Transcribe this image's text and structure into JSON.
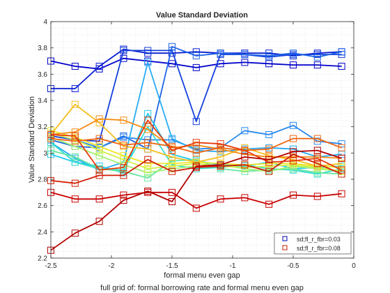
{
  "chart_data": {
    "type": "line",
    "title": "Value Standard Deviation",
    "xlabel": "formal menu even gap",
    "ylabel": "Value Standard Deviation",
    "caption": "full grid of: formal borrowing rate and formal menu even gap",
    "xlim": [
      -2.5,
      0
    ],
    "ylim": [
      2.2,
      4
    ],
    "xticks": [
      -2.5,
      -2,
      -1.5,
      -1,
      -0.5,
      0
    ],
    "xtick_labels": [
      "-2.5",
      "-2",
      "-1.5",
      "-1",
      "-0.5",
      "0"
    ],
    "yticks": [
      2.2,
      2.4,
      2.6,
      2.8,
      3,
      3.2,
      3.4,
      3.6,
      3.8,
      4
    ],
    "ytick_labels": [
      "2.2",
      "2.4",
      "2.6",
      "2.8",
      "3",
      "3.2",
      "3.4",
      "3.6",
      "3.8",
      "4"
    ],
    "grid": "minor dotted",
    "legend_position": "bottom-right",
    "marker": "square",
    "x": [
      -2.5,
      -2.3,
      -2.1,
      -1.9,
      -1.7,
      -1.5,
      -1.3,
      -1.1,
      -0.9,
      -0.7,
      -0.5,
      -0.3,
      -0.1
    ],
    "legend": [
      {
        "label": "sd;fl_r_fbr=0.03",
        "color": "#0000b4"
      },
      {
        "label": "sd;fl_r_fbr=0.08",
        "color": "#c81e00"
      }
    ],
    "series": [
      {
        "color": "#0000cc",
        "values": [
          3.7,
          3.66,
          3.64,
          3.72,
          3.7,
          3.68,
          3.65,
          3.68,
          3.69,
          3.68,
          3.67,
          3.67,
          3.66
        ]
      },
      {
        "color": "#0a1ed2",
        "values": [
          3.49,
          3.49,
          3.66,
          3.79,
          3.76,
          3.76,
          3.77,
          3.76,
          3.76,
          3.76,
          3.74,
          3.76,
          3.77
        ]
      },
      {
        "color": "#1440dc",
        "values": [
          3.13,
          3.1,
          3.09,
          3.78,
          3.78,
          3.78,
          3.24,
          3.75,
          3.75,
          3.73,
          3.75,
          3.75,
          3.75
        ]
      },
      {
        "color": "#1e64e6",
        "values": [
          3.1,
          3.05,
          3.04,
          3.13,
          3.03,
          3.81,
          3.74,
          3.76,
          3.75,
          3.74,
          3.76,
          3.73,
          3.77
        ]
      },
      {
        "color": "#2888ee",
        "values": [
          3.15,
          3.1,
          3.04,
          3.12,
          3.1,
          3.1,
          3.03,
          3.04,
          3.17,
          3.14,
          3.21,
          3.09,
          3.07
        ]
      },
      {
        "color": "#28aaf4",
        "values": [
          3.08,
          2.96,
          2.87,
          2.93,
          3.69,
          3.11,
          3.02,
          3.01,
          3.03,
          3.04,
          3.03,
          2.97,
          2.99
        ]
      },
      {
        "color": "#1ec8f0",
        "values": [
          2.99,
          2.93,
          2.9,
          2.85,
          3.3,
          2.99,
          2.94,
          2.91,
          2.9,
          2.93,
          2.88,
          2.89,
          2.9
        ]
      },
      {
        "color": "#32dcd2",
        "values": [
          3.08,
          2.93,
          2.88,
          2.87,
          3.2,
          2.91,
          2.88,
          2.89,
          2.91,
          2.88,
          2.87,
          2.84,
          2.88
        ]
      },
      {
        "color": "#64e6a0",
        "values": [
          3.02,
          2.97,
          2.88,
          2.86,
          2.81,
          2.94,
          2.95,
          2.88,
          2.86,
          2.87,
          2.88,
          2.85,
          2.84
        ]
      },
      {
        "color": "#a0ef6e",
        "values": [
          3.12,
          3.05,
          2.98,
          2.91,
          2.85,
          2.88,
          2.9,
          2.91,
          2.88,
          2.86,
          2.9,
          2.88,
          2.86
        ]
      },
      {
        "color": "#d2f046",
        "values": [
          3.15,
          3.1,
          3.02,
          2.95,
          2.88,
          2.9,
          2.92,
          2.9,
          2.89,
          2.9,
          2.91,
          2.89,
          2.86
        ]
      },
      {
        "color": "#f0e628",
        "values": [
          3.17,
          3.12,
          3.05,
          2.98,
          2.92,
          2.92,
          2.93,
          2.92,
          2.91,
          2.92,
          2.92,
          2.9,
          2.89
        ]
      },
      {
        "color": "#f5be1e",
        "values": [
          3.14,
          3.37,
          3.23,
          3.05,
          3.03,
          2.97,
          2.93,
          2.97,
          3.04,
          2.98,
          2.95,
          2.9,
          2.92
        ]
      },
      {
        "color": "#f58c14",
        "values": [
          3.14,
          3.16,
          3.26,
          3.25,
          3.18,
          3.04,
          3.06,
          3.03,
          2.99,
          2.97,
          2.97,
          2.97,
          2.96
        ]
      },
      {
        "color": "#f0640f",
        "values": [
          3.11,
          3.09,
          3.11,
          3.06,
          3.08,
          3.05,
          3.0,
          3.04,
          3.02,
          3.03,
          3.11,
          3.11,
          3.04
        ]
      },
      {
        "color": "#e63c0a",
        "values": [
          3.14,
          3.13,
          2.87,
          2.89,
          3.25,
          3.02,
          3.08,
          3.07,
          3.02,
          2.93,
          2.94,
          2.96,
          2.87
        ]
      },
      {
        "color": "#d21e05",
        "values": [
          2.79,
          2.77,
          2.83,
          2.83,
          2.95,
          2.86,
          2.89,
          2.9,
          2.91,
          2.86,
          2.99,
          2.92,
          2.84
        ]
      },
      {
        "color": "#c80000",
        "values": [
          2.7,
          2.65,
          2.65,
          2.68,
          2.7,
          2.7,
          2.58,
          2.65,
          2.66,
          2.61,
          2.68,
          2.67,
          2.69
        ]
      },
      {
        "color": "#b40000",
        "values": [
          2.26,
          2.39,
          2.48,
          2.64,
          2.71,
          2.63,
          2.9,
          2.91,
          2.97,
          2.95,
          3.01,
          3.02,
          2.96
        ]
      }
    ]
  }
}
